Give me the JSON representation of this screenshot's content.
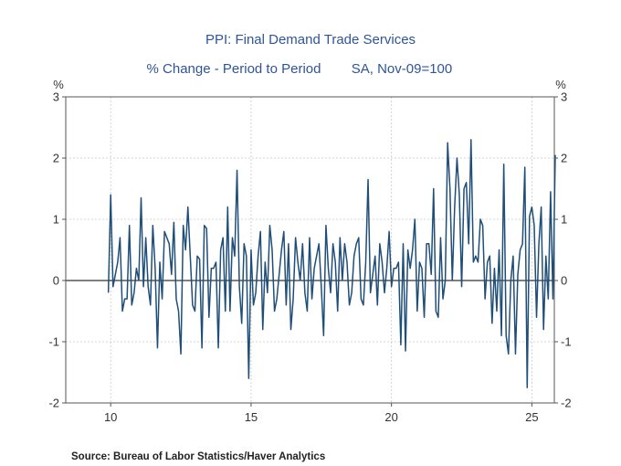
{
  "chart_data": {
    "type": "line",
    "title": "PPI: Final Demand Trade Services",
    "subtitle": "% Change - Period to Period",
    "subtitle_note": "SA, Nov-09=100",
    "left_unit": "%",
    "right_unit": "%",
    "ylim": [
      -2,
      3
    ],
    "yticks": [
      3,
      2,
      1,
      0,
      -1,
      -2
    ],
    "x_domain": [
      2008.4,
      2025.8
    ],
    "xticks": [
      {
        "value": 2010,
        "label": "10"
      },
      {
        "value": 2015,
        "label": "15"
      },
      {
        "value": 2020,
        "label": "20"
      },
      {
        "value": 2025,
        "label": "25"
      }
    ],
    "grid": true,
    "source": "Source:  Bureau of Labor Statistics/Haver Analytics",
    "line_color": "#1f4e79",
    "x_start": 2009.917,
    "x_step": 0.08333,
    "series": [
      {
        "name": "PPI: Final Demand Trade Services % change",
        "values": [
          -0.2,
          1.4,
          -0.1,
          0.1,
          0.3,
          0.7,
          -0.5,
          -0.3,
          -0.3,
          0.9,
          -0.4,
          -0.2,
          0.2,
          0.0,
          1.35,
          -0.1,
          0.7,
          -0.1,
          -0.4,
          0.9,
          0.2,
          -1.1,
          0.3,
          -0.3,
          0.8,
          0.7,
          0.6,
          0.1,
          0.95,
          -0.3,
          -0.5,
          -1.2,
          0.9,
          0.5,
          1.2,
          0.4,
          -0.4,
          -0.5,
          0.4,
          0.35,
          -1.1,
          0.9,
          0.85,
          -0.6,
          0.2,
          0.2,
          0.3,
          -1.1,
          0.5,
          0.7,
          -0.5,
          1.2,
          -0.5,
          0.7,
          0.4,
          1.8,
          -0.1,
          -0.7,
          0.6,
          0.4,
          -1.6,
          0.5,
          -0.4,
          -0.2,
          0.4,
          0.8,
          -0.8,
          0.3,
          -0.2,
          0.9,
          0.5,
          -0.5,
          -0.3,
          0.1,
          0.5,
          0.8,
          -0.4,
          0.6,
          -0.8,
          -0.3,
          0.7,
          0.3,
          0.0,
          0.6,
          -0.2,
          -0.5,
          0.7,
          -0.3,
          0.2,
          0.4,
          0.6,
          -0.1,
          -0.9,
          0.9,
          0.2,
          -0.2,
          0.6,
          0.3,
          -0.5,
          0.7,
          0.0,
          0.6,
          0.3,
          -0.4,
          -0.2,
          0.4,
          0.6,
          0.7,
          -0.3,
          -0.4,
          0.3,
          1.65,
          -0.2,
          0.1,
          0.4,
          -0.4,
          0.6,
          0.3,
          -0.2,
          0.2,
          0.8,
          -0.1,
          0.2,
          0.2,
          0.3,
          -1.05,
          0.6,
          -1.15,
          0.5,
          0.2,
          0.5,
          1.0,
          -0.5,
          0.3,
          0.2,
          -0.6,
          0.6,
          0.6,
          0.1,
          1.5,
          -0.5,
          -0.6,
          0.7,
          -0.3,
          0.0,
          2.25,
          1.5,
          0.0,
          1.2,
          2.0,
          1.4,
          -0.1,
          1.5,
          1.6,
          0.6,
          2.3,
          0.3,
          0.4,
          0.3,
          1.0,
          0.9,
          -0.3,
          0.3,
          0.4,
          -0.7,
          0.2,
          -0.5,
          0.5,
          -0.9,
          1.9,
          -0.9,
          -1.2,
          0.0,
          0.4,
          -1.2,
          0.1,
          0.5,
          0.6,
          1.85,
          -1.75,
          1.05,
          1.2,
          0.9,
          -0.6,
          0.6,
          1.2,
          -0.8,
          0.4,
          -0.3,
          1.45,
          -0.3,
          2.05
        ]
      }
    ]
  }
}
